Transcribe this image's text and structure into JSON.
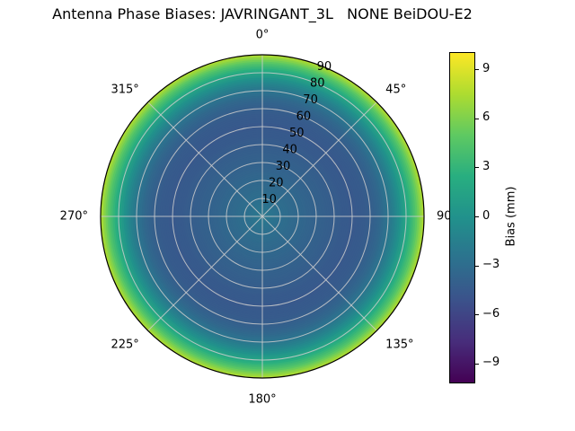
{
  "title": "Antenna Phase Biases: JAVRINGANT_3L   NONE BeiDOU-E2",
  "colors": {
    "background": "#ffffff",
    "grid": "#cccccc",
    "outline": "#000000",
    "text": "#000000",
    "viridis_stops": [
      "#440154",
      "#472d7b",
      "#3b528b",
      "#2c728e",
      "#21918c",
      "#28ae80",
      "#5ec962",
      "#addc30",
      "#fde725"
    ]
  },
  "chart_data": {
    "type": "heatmap",
    "projection": "polar",
    "title": "Antenna Phase Biases: JAVRINGANT_3L   NONE BeiDOU-E2",
    "antenna": "JAVRINGANT_3L",
    "dome": "NONE",
    "signal": "BeiDOU-E2",
    "theta_zero": "top",
    "r_axis": {
      "min": 0,
      "max": 90,
      "tick_step": 10
    },
    "theta_ticks": [
      {
        "angle": 0,
        "label": "0°"
      },
      {
        "angle": 45,
        "label": "45°"
      },
      {
        "angle": 90,
        "label": "90"
      },
      {
        "angle": 135,
        "label": "135°"
      },
      {
        "angle": 180,
        "label": "180°"
      },
      {
        "angle": 225,
        "label": "225°"
      },
      {
        "angle": 270,
        "label": "270°"
      },
      {
        "angle": 315,
        "label": "315°"
      }
    ],
    "r_ticks": [
      {
        "value": 10,
        "label": "10"
      },
      {
        "value": 20,
        "label": "20"
      },
      {
        "value": 30,
        "label": "30"
      },
      {
        "value": 40,
        "label": "40"
      },
      {
        "value": 50,
        "label": "50"
      },
      {
        "value": 60,
        "label": "60"
      },
      {
        "value": 70,
        "label": "70"
      },
      {
        "value": 80,
        "label": "80"
      },
      {
        "value": 90,
        "label": "90"
      }
    ],
    "r_label_angle_deg": 22.5,
    "colormap": "viridis",
    "colorbar": {
      "label": "Bias (mm)",
      "ticks": [
        9,
        6,
        3,
        0,
        -3,
        -6,
        -9
      ],
      "tick_labels": [
        "9",
        "6",
        "3",
        "0",
        "−3",
        "−6",
        "−9"
      ],
      "vmin": -10.1,
      "vmax": 10.1
    },
    "azimuthally_symmetric": true,
    "radial_profile": {
      "zenith_deg": [
        0,
        5,
        10,
        15,
        20,
        25,
        30,
        35,
        40,
        45,
        50,
        55,
        60,
        65,
        70,
        75,
        80,
        85,
        90
      ],
      "bias_mm": [
        -2.0,
        -2.4,
        -2.8,
        -3.1,
        -3.3,
        -3.6,
        -3.8,
        -4.0,
        -4.2,
        -4.4,
        -4.5,
        -4.4,
        -4.1,
        -3.4,
        -2.3,
        -0.6,
        1.8,
        4.5,
        8.0
      ]
    }
  }
}
